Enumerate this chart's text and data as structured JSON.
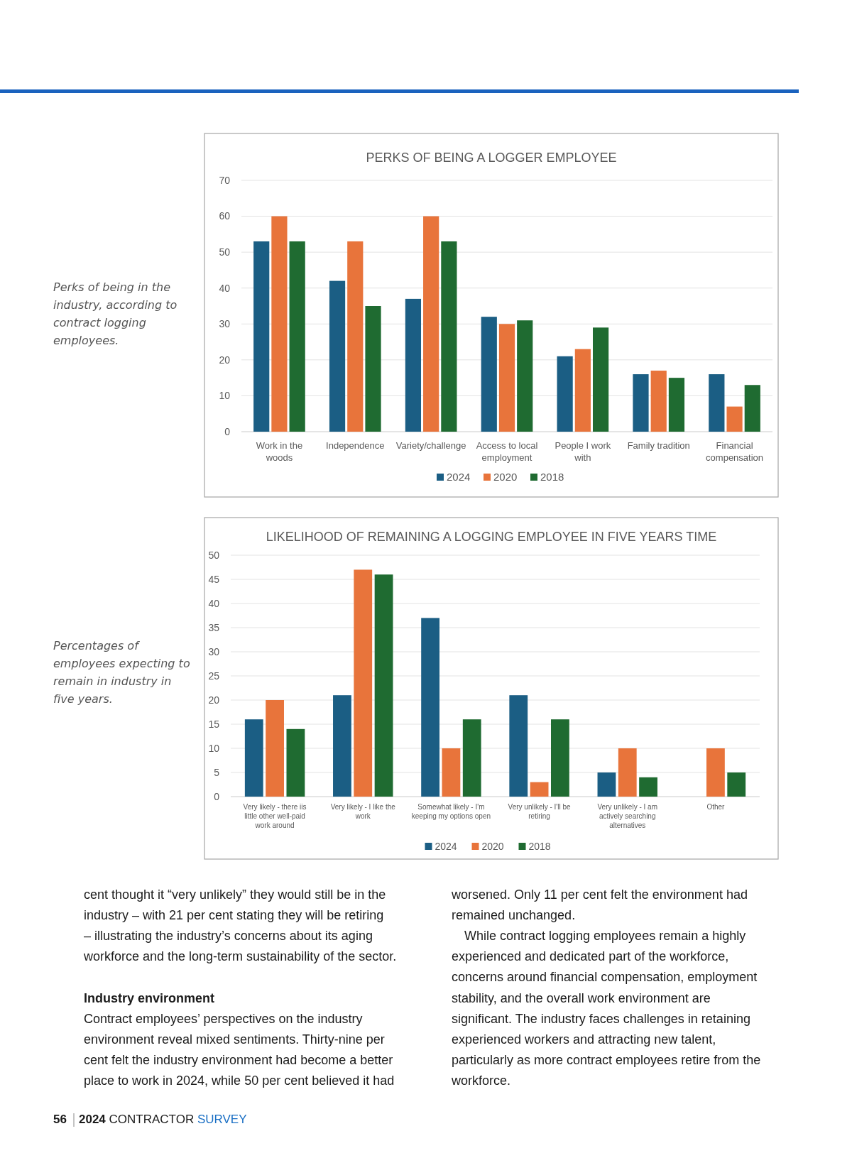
{
  "chart_data": [
    {
      "type": "bar",
      "title": "PERKS OF BEING A LOGGER EMPLOYEE",
      "categories": [
        "Work in the woods",
        "Independence",
        "Variety/challenge",
        "Access to local employment",
        "People I work with",
        "Family tradition",
        "Financial compensation"
      ],
      "series": [
        {
          "name": "2024",
          "color": "#1b5e84",
          "values": [
            53,
            42,
            37,
            32,
            21,
            16,
            16
          ]
        },
        {
          "name": "2020",
          "color": "#e8743b",
          "values": [
            60,
            53,
            60,
            30,
            23,
            17,
            7
          ]
        },
        {
          "name": "2018",
          "color": "#1f6b31",
          "values": [
            53,
            35,
            53,
            31,
            29,
            15,
            13
          ]
        }
      ],
      "ylim": [
        0,
        70
      ],
      "yticks": [
        0,
        10,
        20,
        30,
        40,
        50,
        60,
        70
      ],
      "grid": "y",
      "legend": "bottom",
      "annotations": [
        "Perks of being in the industry, according to contract logging employees."
      ]
    },
    {
      "type": "bar",
      "title": "LIKELIHOOD OF REMAINING A LOGGING EMPLOYEE IN FIVE YEARS TIME",
      "categories": [
        "Very likely - there iis little other well-paid work around",
        "Very likely - I like the work",
        "Somewhat likely - I'm keeping my options open",
        "Very unlikely - I'll be retiring",
        "Very unlikely - I am actively searching alternatives",
        "Other"
      ],
      "series": [
        {
          "name": "2024",
          "color": "#1b5e84",
          "values": [
            16,
            21,
            37,
            21,
            5,
            null
          ]
        },
        {
          "name": "2020",
          "color": "#e8743b",
          "values": [
            20,
            47,
            10,
            3,
            10,
            10
          ]
        },
        {
          "name": "2018",
          "color": "#1f6b31",
          "values": [
            14,
            46,
            16,
            16,
            4,
            5
          ]
        }
      ],
      "ylim": [
        0,
        50
      ],
      "yticks": [
        0,
        5,
        10,
        15,
        20,
        25,
        30,
        35,
        40,
        45,
        50
      ],
      "grid": "y",
      "legend": "bottom",
      "annotations": [
        "Percentages of employees expecting to remain in industry in five years.",
        "cent thought it “very unlikely” they would still be in the",
        "industry – with 21 per cent stating they will be retiring",
        "– illustrating the industry’s concerns about its aging",
        "workforce and the long-term sustainability of the sector.",
        "Industry environment",
        "Contract employees’ perspectives on the industry",
        "environment reveal mixed sentiments. Thirty-nine per",
        "cent felt the industry environment had become a better",
        "place to work in 2024, while 50 per cent believed it had",
        "worsened. Only 11 per cent felt the environment had",
        "remained unchanged.",
        "While contract logging employees remain a highly",
        "experienced and dedicated part of the workforce,",
        "concerns around financial compensation, employment",
        "stability, and the overall work environment are",
        "significant. The industry faces challenges in retaining",
        "experienced workers and attracting new talent,",
        "particularly as more contract employees retire from the",
        "workforce.",
        "56",
        "2024 CONTRACTOR SURVEY"
      ]
    }
  ]
}
